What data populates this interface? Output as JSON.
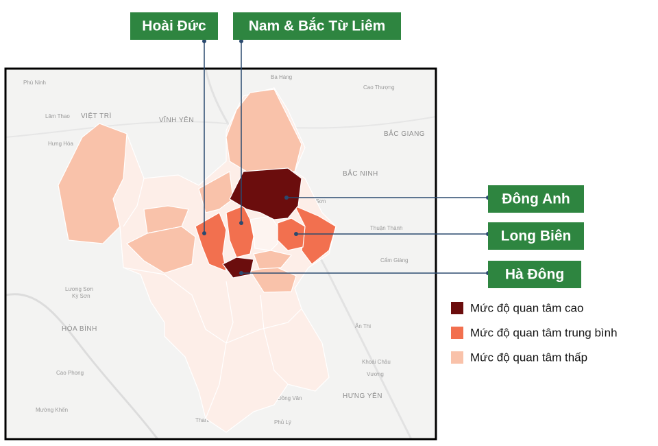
{
  "callouts": [
    {
      "label": "Hoài Đức"
    },
    {
      "label": "Nam & Bắc Từ Liêm"
    },
    {
      "label": "Đông Anh"
    },
    {
      "label": "Long Biên"
    },
    {
      "label": "Hà Đông"
    }
  ],
  "legend": [
    {
      "label": "Mức độ quan tâm cao",
      "color": "#6b0d0d"
    },
    {
      "label": "Mức độ quan tâm trung bình",
      "color": "#f2704f"
    },
    {
      "label": "Mức độ quan tâm thấp",
      "color": "#f9c2aa"
    }
  ],
  "base_map_labels": [
    "Phù Ninh",
    "VIỆT TRÌ",
    "VĨNH YÊN",
    "Ba Hàng",
    "Cao Thượng",
    "BẮC GIANG",
    "BẮC NINH",
    "Từ Sơn",
    "Thuận Thành",
    "Cẩm Giàng",
    "HÒA BÌNH",
    "Kỳ Sơn",
    "Cao Phong",
    "Lương Sơn",
    "Ân Thi",
    "Khoái Châu",
    "HƯNG YÊN",
    "Đồng Văn",
    "Mường Khến",
    "Thanh Hà",
    "Phủ Lý",
    "Vương",
    "Lâm Thao",
    "Hưng Hóa"
  ]
}
